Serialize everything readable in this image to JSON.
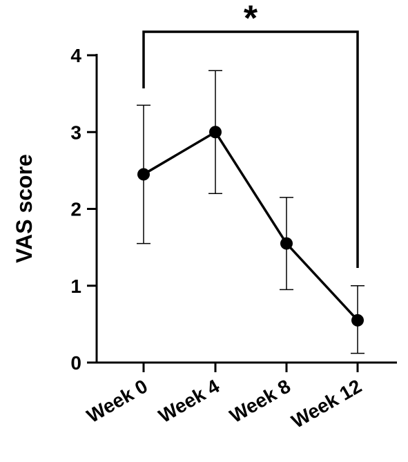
{
  "chart_data": {
    "type": "line",
    "categories": [
      "Week 0",
      "Week 4",
      "Week 8",
      "Week 12"
    ],
    "values": [
      2.45,
      3.0,
      1.55,
      0.55
    ],
    "error_upper": [
      3.35,
      3.8,
      2.15,
      1.0
    ],
    "error_lower": [
      1.55,
      2.2,
      0.95,
      0.12
    ],
    "ylabel": "VAS score",
    "xlabel": "",
    "title": "",
    "ylim": [
      0,
      4
    ],
    "yticks": [
      "0",
      "1",
      "2",
      "3",
      "4"
    ],
    "grid": false,
    "significance": {
      "from": "Week 0",
      "to": "Week 12",
      "label": "*"
    }
  }
}
